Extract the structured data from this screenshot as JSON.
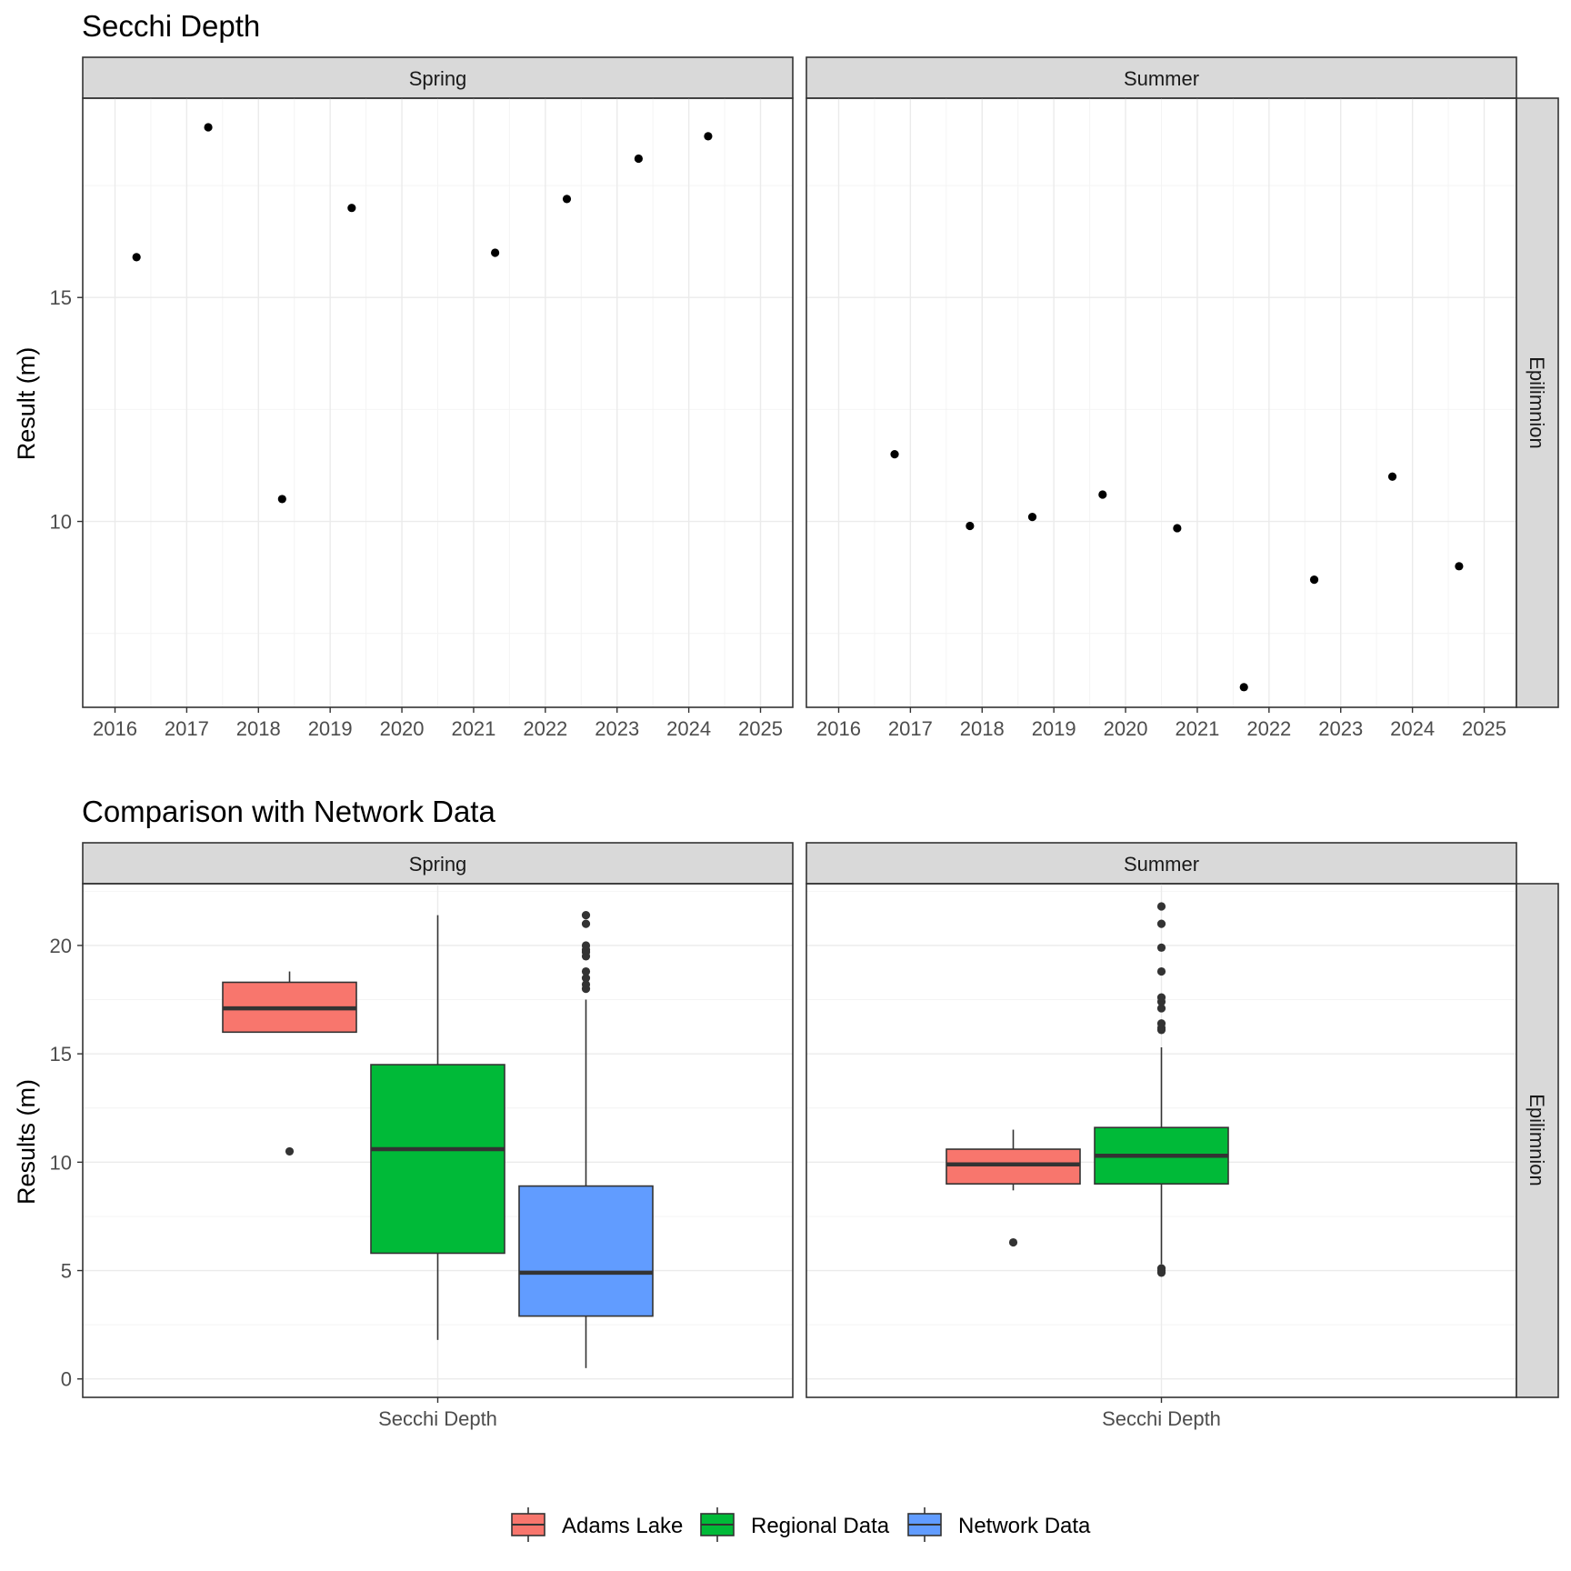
{
  "chart_data": [
    {
      "type": "scatter",
      "title": "Secchi Depth",
      "ylabel": "Result (m)",
      "xlabel": "",
      "facet_row": "Epilimnion",
      "xlim": [
        2015.55,
        2025.45
      ],
      "ylim": [
        5.85,
        19.45
      ],
      "x_ticks": [
        "2016",
        "2017",
        "2018",
        "2019",
        "2020",
        "2021",
        "2022",
        "2023",
        "2024",
        "2025"
      ],
      "y_ticks": [
        "10",
        "15"
      ],
      "grid": true,
      "panels": [
        {
          "facet": "Spring",
          "points": [
            {
              "x": 2016.3,
              "y": 15.9
            },
            {
              "x": 2017.3,
              "y": 18.8
            },
            {
              "x": 2018.33,
              "y": 10.5
            },
            {
              "x": 2019.3,
              "y": 17.0
            },
            {
              "x": 2021.3,
              "y": 16.0
            },
            {
              "x": 2022.3,
              "y": 17.2
            },
            {
              "x": 2023.3,
              "y": 18.1
            },
            {
              "x": 2024.27,
              "y": 18.6
            }
          ]
        },
        {
          "facet": "Summer",
          "points": [
            {
              "x": 2016.78,
              "y": 11.5
            },
            {
              "x": 2017.83,
              "y": 9.9
            },
            {
              "x": 2018.7,
              "y": 10.1
            },
            {
              "x": 2019.68,
              "y": 10.6
            },
            {
              "x": 2020.72,
              "y": 9.85
            },
            {
              "x": 2021.65,
              "y": 6.3
            },
            {
              "x": 2022.63,
              "y": 8.7
            },
            {
              "x": 2023.72,
              "y": 11.0
            },
            {
              "x": 2024.65,
              "y": 9.0
            }
          ]
        }
      ]
    },
    {
      "type": "box",
      "title": "Comparison with Network Data",
      "ylabel": "Results (m)",
      "xlabel": "",
      "facet_row": "Epilimnion",
      "categories": [
        "Secchi Depth"
      ],
      "ylim": [
        -0.85,
        22.85
      ],
      "y_ticks": [
        "0",
        "5",
        "10",
        "15",
        "20"
      ],
      "grid": true,
      "legend": {
        "position": "bottom",
        "entries": [
          {
            "name": "Adams Lake",
            "color": "#F8766D"
          },
          {
            "name": "Regional Data",
            "color": "#00BA38"
          },
          {
            "name": "Network Data",
            "color": "#619CFF"
          }
        ]
      },
      "panels": [
        {
          "facet": "Spring",
          "boxes": [
            {
              "series": "Adams Lake",
              "whisker_low": 16.0,
              "q1": 16.0,
              "median": 17.1,
              "q3": 18.3,
              "whisker_high": 18.8,
              "outliers": [
                10.5
              ]
            },
            {
              "series": "Regional Data",
              "whisker_low": 1.8,
              "q1": 5.8,
              "median": 10.6,
              "q3": 14.5,
              "whisker_high": 21.4,
              "outliers": []
            },
            {
              "series": "Network Data",
              "whisker_low": 0.5,
              "q1": 2.9,
              "median": 4.9,
              "q3": 8.9,
              "whisker_high": 17.5,
              "outliers": [
                18.0,
                18.2,
                18.5,
                18.8,
                19.5,
                19.7,
                19.8,
                20.0,
                21.0,
                21.4
              ]
            }
          ]
        },
        {
          "facet": "Summer",
          "boxes": [
            {
              "series": "Adams Lake",
              "whisker_low": 8.7,
              "q1": 9.0,
              "median": 9.9,
              "q3": 10.6,
              "whisker_high": 11.5,
              "outliers": [
                6.3
              ]
            },
            {
              "series": "Regional Data",
              "whisker_low": 5.3,
              "q1": 9.0,
              "median": 10.3,
              "q3": 11.6,
              "whisker_high": 15.3,
              "outliers": [
                4.9,
                5.0,
                5.1,
                16.1,
                16.2,
                16.4,
                17.1,
                17.4,
                17.6,
                18.8,
                19.9,
                21.0,
                21.8
              ]
            }
          ]
        }
      ]
    }
  ]
}
